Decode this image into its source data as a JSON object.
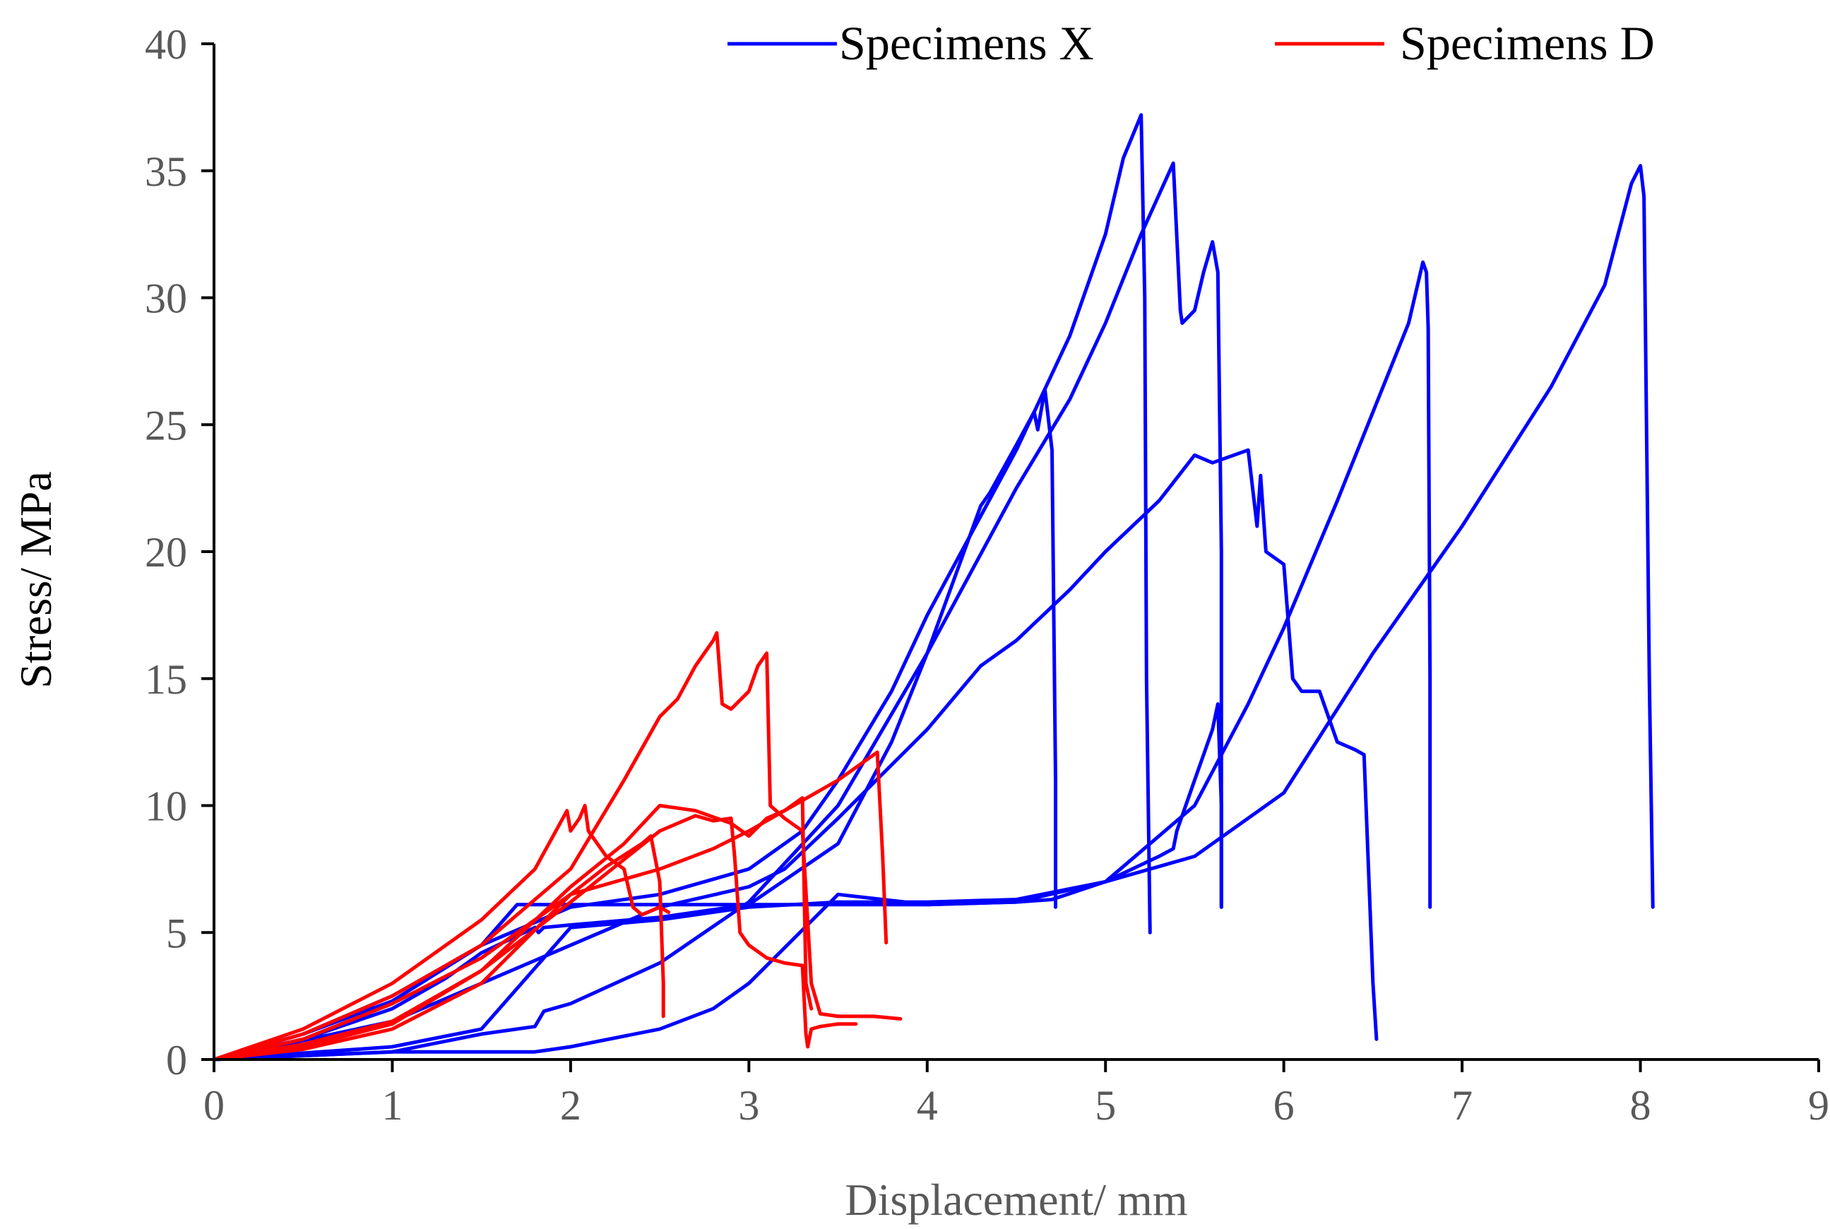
{
  "chart_data": {
    "type": "line",
    "title": "",
    "xlabel": "Displacement/ mm",
    "ylabel": "Stress/ MPa",
    "xlim": [
      0,
      9
    ],
    "ylim": [
      0,
      40
    ],
    "x_ticks": [
      0,
      1,
      2,
      3,
      4,
      5,
      6,
      7,
      8,
      9
    ],
    "y_ticks": [
      0,
      5,
      10,
      15,
      20,
      25,
      30,
      35,
      40
    ],
    "grid": false,
    "legend_position": "top-right",
    "legend": [
      {
        "label": "Specimens X",
        "color": "#0000ff"
      },
      {
        "label": "Specimens D",
        "color": "#ff0000"
      }
    ],
    "series": [
      {
        "name": "Specimens X",
        "color": "#0000ff",
        "x": [
          0,
          0.5,
          1.0,
          1.3,
          1.5,
          1.8,
          1.82,
          1.85,
          2.0,
          2.5,
          3.0,
          3.5,
          3.8,
          4.0,
          4.3,
          4.35,
          4.5,
          4.6,
          4.62,
          4.66,
          4.7,
          4.72,
          4.72
        ],
        "y": [
          0,
          0.8,
          2.0,
          3.2,
          4.2,
          5.2,
          5.0,
          5.2,
          5.3,
          5.6,
          6.1,
          8.5,
          12.5,
          16.0,
          21.8,
          22.3,
          24.2,
          25.5,
          24.8,
          26.4,
          24.0,
          11.0,
          6.0
        ]
      },
      {
        "name": "Specimens X",
        "color": "#0000ff",
        "x": [
          0,
          0.5,
          1.0,
          1.5,
          2.0,
          2.5,
          3.0,
          3.3,
          3.5,
          3.8,
          4.0,
          4.5,
          4.8,
          5.0,
          5.1,
          5.2,
          5.22,
          5.23,
          5.25
        ],
        "y": [
          0,
          1.0,
          2.5,
          4.5,
          6.0,
          6.5,
          7.5,
          9.0,
          11.0,
          14.5,
          17.5,
          24.0,
          28.5,
          32.5,
          35.5,
          37.2,
          30.0,
          15.0,
          5.0
        ]
      },
      {
        "name": "Specimens X",
        "color": "#0000ff",
        "x": [
          0,
          0.5,
          1.0,
          1.5,
          1.7,
          2.0,
          2.5,
          3.0,
          3.5,
          4.0,
          4.5,
          4.7,
          5.0,
          5.3,
          5.38,
          5.4,
          5.45,
          5.5,
          5.55,
          5.6,
          5.63,
          5.65,
          5.65
        ],
        "y": [
          0,
          1.0,
          2.3,
          4.5,
          6.1,
          6.1,
          6.1,
          6.1,
          6.1,
          6.1,
          6.2,
          6.3,
          7.0,
          8.0,
          8.3,
          9.0,
          10.0,
          11.0,
          12.0,
          13.0,
          14.0,
          10.0,
          6.0
        ]
      },
      {
        "name": "Specimens X",
        "color": "#0000ff",
        "x": [
          0,
          1.0,
          1.5,
          1.8,
          1.85,
          2.0,
          2.5,
          3.0,
          3.5,
          4.0,
          4.5,
          4.8,
          5.0,
          5.2,
          5.38,
          5.42,
          5.43,
          5.5,
          5.55,
          5.6,
          5.63,
          5.65,
          5.65
        ],
        "y": [
          0,
          0.3,
          1.0,
          1.3,
          1.9,
          2.2,
          3.8,
          6.2,
          10.0,
          16.0,
          22.5,
          26.0,
          29.0,
          32.5,
          35.3,
          29.5,
          29.0,
          29.5,
          31.0,
          32.2,
          31.0,
          20.0,
          6.0
        ]
      },
      {
        "name": "Specimens X",
        "color": "#0000ff",
        "x": [
          0,
          1.0,
          1.5,
          2.0,
          2.5,
          3.0,
          3.2,
          3.5,
          4.0,
          4.3,
          4.5,
          4.8,
          5.0,
          5.3,
          5.5,
          5.6,
          5.8,
          5.85,
          5.87,
          5.9,
          6.0,
          6.05,
          6.1,
          6.2,
          6.3,
          6.4,
          6.45,
          6.5,
          6.52
        ],
        "y": [
          0,
          1.5,
          3.0,
          4.5,
          6.0,
          6.8,
          7.5,
          9.5,
          13.0,
          15.5,
          16.5,
          18.5,
          20.0,
          22.0,
          23.8,
          23.5,
          24.0,
          21.0,
          23.0,
          20.0,
          19.5,
          15.0,
          14.5,
          14.5,
          12.5,
          12.2,
          12.0,
          3.0,
          0.8
        ]
      },
      {
        "name": "Specimens X",
        "color": "#0000ff",
        "x": [
          0,
          1.0,
          1.5,
          2.0,
          2.5,
          3.0,
          3.5,
          4.0,
          4.5,
          5.0,
          5.5,
          5.8,
          6.0,
          6.3,
          6.5,
          6.7,
          6.78,
          6.8,
          6.81,
          6.82,
          6.82
        ],
        "y": [
          0,
          0.5,
          1.2,
          5.2,
          5.5,
          6.0,
          6.2,
          6.2,
          6.3,
          7.0,
          10.0,
          14.0,
          17.0,
          22.0,
          25.5,
          29.0,
          31.4,
          31.0,
          28.8,
          15.0,
          6.0
        ]
      },
      {
        "name": "Specimens X",
        "color": "#0000ff",
        "x": [
          0,
          1.0,
          1.5,
          1.8,
          2.0,
          2.5,
          2.8,
          3.0,
          3.5,
          4.0,
          4.5,
          5.0,
          5.5,
          6.0,
          6.5,
          7.0,
          7.5,
          7.8,
          7.95,
          8.0,
          8.02,
          8.05,
          8.07
        ],
        "y": [
          0,
          0.3,
          0.3,
          0.3,
          0.5,
          1.2,
          2.0,
          3.0,
          6.5,
          6.1,
          6.2,
          7.0,
          8.0,
          10.5,
          16.0,
          21.0,
          26.5,
          30.5,
          34.5,
          35.2,
          34.0,
          15.0,
          6.0
        ]
      },
      {
        "name": "Specimens D",
        "color": "#ff0000",
        "x": [
          0,
          0.5,
          1.0,
          1.5,
          1.8,
          1.98,
          2.0,
          2.05,
          2.08,
          2.1,
          2.2,
          2.3,
          2.35,
          2.4,
          2.5,
          2.55
        ],
        "y": [
          0,
          1.2,
          3.0,
          5.5,
          7.5,
          9.8,
          9.0,
          9.5,
          10.0,
          9.0,
          8.0,
          7.5,
          6.0,
          5.7,
          6.0,
          5.8
        ]
      },
      {
        "name": "Specimens D",
        "color": "#ff0000",
        "x": [
          0,
          0.5,
          1.0,
          1.5,
          2.0,
          2.3,
          2.5,
          2.6,
          2.7,
          2.8,
          2.82,
          2.85,
          2.9,
          3.0,
          3.05,
          3.1,
          3.12,
          3.2,
          3.3,
          3.35,
          3.4,
          3.5,
          3.6,
          3.7,
          3.85
        ],
        "y": [
          0,
          1.0,
          2.5,
          4.5,
          7.5,
          11.0,
          13.5,
          14.2,
          15.5,
          16.5,
          16.8,
          14.0,
          13.8,
          14.5,
          15.5,
          16.0,
          10.0,
          9.5,
          9.0,
          3.0,
          1.8,
          1.7,
          1.7,
          1.7,
          1.6
        ]
      },
      {
        "name": "Specimens D",
        "color": "#ff0000",
        "x": [
          0,
          0.5,
          1.0,
          1.5,
          2.0,
          2.2,
          2.4,
          2.45,
          2.5,
          2.52,
          2.52
        ],
        "y": [
          0,
          0.8,
          2.2,
          4.0,
          6.5,
          7.6,
          8.5,
          8.8,
          7.0,
          3.0,
          1.7
        ]
      },
      {
        "name": "Specimens D",
        "color": "#ff0000",
        "x": [
          0,
          0.5,
          1.0,
          1.5,
          2.0,
          2.5,
          2.7,
          2.8,
          2.9,
          2.92,
          2.95,
          3.0,
          3.1,
          3.2,
          3.3,
          3.32,
          3.33,
          3.35,
          3.4,
          3.5,
          3.6
        ],
        "y": [
          0,
          0.6,
          1.5,
          3.5,
          6.2,
          9.0,
          9.6,
          9.4,
          9.5,
          8.0,
          5.0,
          4.5,
          4.0,
          3.8,
          3.7,
          1.0,
          0.5,
          1.2,
          1.3,
          1.4,
          1.4
        ]
      },
      {
        "name": "Specimens D",
        "color": "#ff0000",
        "x": [
          0,
          0.5,
          1.0,
          1.5,
          2.0,
          2.3,
          2.5,
          2.7,
          2.9,
          3.0,
          3.1,
          3.2,
          3.3,
          3.32,
          3.35
        ],
        "y": [
          0,
          0.5,
          1.4,
          3.5,
          6.8,
          8.5,
          10.0,
          9.8,
          9.3,
          8.8,
          9.5,
          9.8,
          10.3,
          3.0,
          2.0
        ]
      },
      {
        "name": "Specimens D",
        "color": "#ff0000",
        "x": [
          0,
          0.5,
          1.0,
          1.5,
          2.0,
          2.5,
          2.8,
          3.0,
          3.3,
          3.5,
          3.6,
          3.72,
          3.75,
          3.77
        ],
        "y": [
          0,
          0.4,
          1.2,
          3.0,
          6.5,
          7.5,
          8.3,
          9.0,
          10.2,
          11.0,
          11.5,
          12.1,
          8.0,
          4.6
        ]
      }
    ]
  }
}
